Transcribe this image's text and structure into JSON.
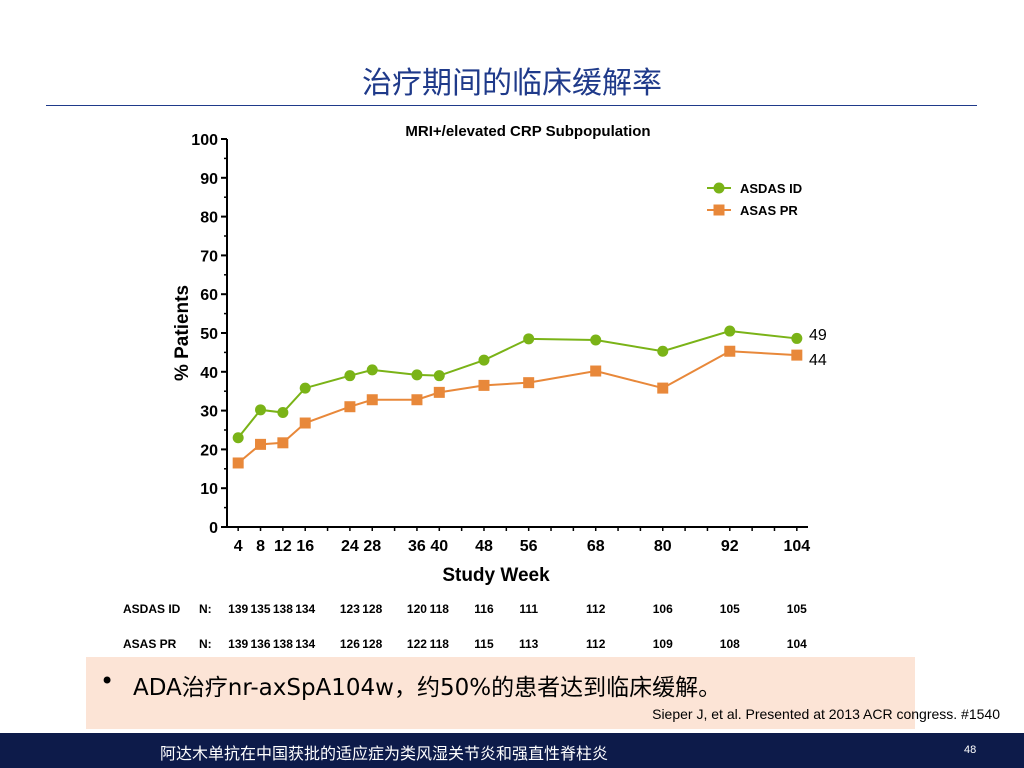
{
  "slide": {
    "title": "治疗期间的临床缓解率",
    "bullet_marker": "•",
    "bullet_text": "ADA治疗nr-axSpA104w，约50%的患者达到临床缓解。",
    "citation": "Sieper J, et al. Presented at 2013 ACR congress. #1540",
    "footer_text": "阿达木单抗在中国获批的适应症为类风湿关节炎和强直性脊柱炎",
    "page_number": "48"
  },
  "chart_data": {
    "type": "line",
    "title": "MRI+/elevated CRP Subpopulation",
    "xlabel": "Study Week",
    "ylabel": "% Patients",
    "x": [
      4,
      8,
      12,
      16,
      24,
      28,
      36,
      40,
      48,
      56,
      68,
      80,
      92,
      104
    ],
    "x_tick_labels": [
      "4",
      "8",
      "12",
      "16",
      "24",
      "28",
      "36",
      "40",
      "48",
      "56",
      "68",
      "80",
      "92",
      "104"
    ],
    "xlim": [
      2,
      106
    ],
    "ylim": [
      0,
      100
    ],
    "y_ticks": [
      0,
      10,
      20,
      30,
      40,
      50,
      60,
      70,
      80,
      90,
      100
    ],
    "legend_position": "top-right",
    "series": [
      {
        "name": "ASDAS ID",
        "color": "#7ab317",
        "marker": "circle",
        "values": [
          23,
          30.2,
          29.5,
          35.8,
          39,
          40.5,
          39.2,
          39,
          43,
          48.5,
          48.2,
          45.3,
          50.5,
          48.6
        ],
        "end_label": "49",
        "n_label": "ASDAS ID",
        "n_values": [
          "139",
          "135",
          "138",
          "134",
          "123",
          "128",
          "120",
          "118",
          "116",
          "111",
          "112",
          "106",
          "105",
          "105"
        ]
      },
      {
        "name": "ASAS PR",
        "color": "#e8883a",
        "marker": "square",
        "values": [
          16.5,
          21.3,
          21.7,
          26.8,
          31,
          32.8,
          32.8,
          34.7,
          36.5,
          37.2,
          40.2,
          35.8,
          45.3,
          44.3
        ],
        "end_label": "44",
        "n_label": "ASAS PR",
        "n_values": [
          "139",
          "136",
          "138",
          "134",
          "126",
          "128",
          "122",
          "118",
          "115",
          "113",
          "112",
          "109",
          "108",
          "104"
        ]
      }
    ],
    "n_prefix": "N:"
  }
}
